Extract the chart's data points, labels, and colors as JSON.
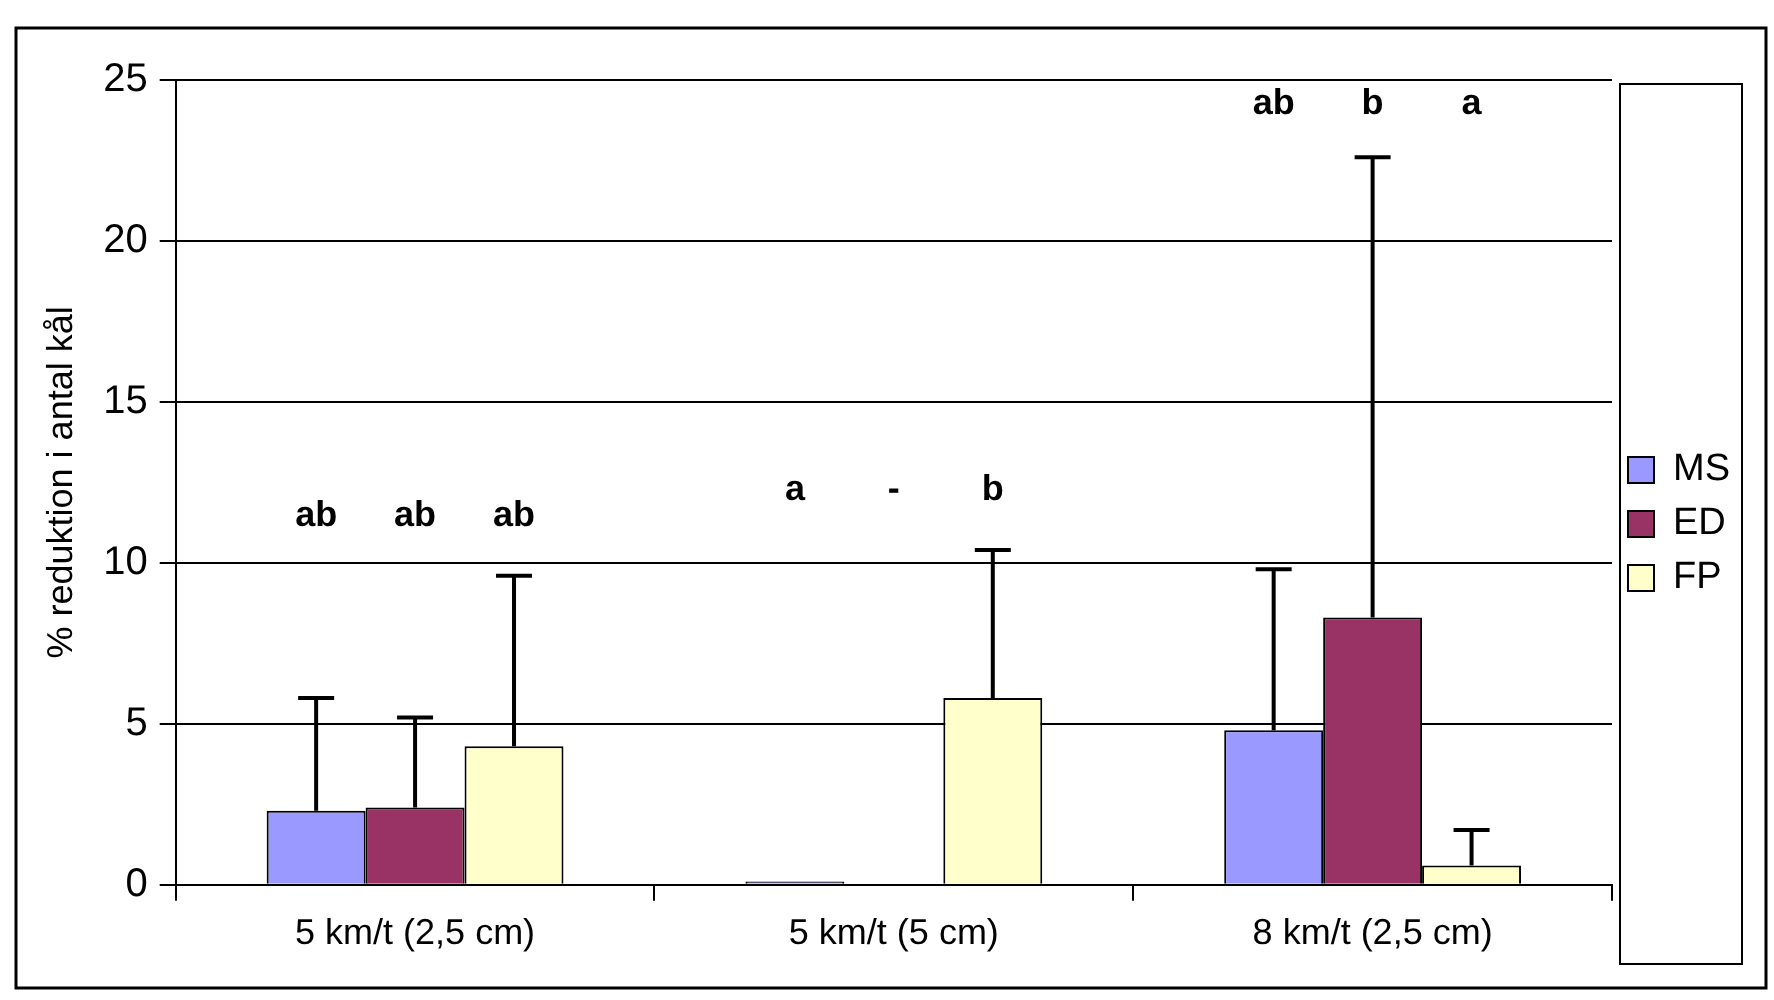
{
  "chart_data": {
    "type": "bar",
    "ylabel": "% reduktion i antal kål",
    "categories": [
      "5 km/t (2,5 cm)",
      "5 km/t (5 cm)",
      "8 km/t (2,5 cm)"
    ],
    "series": [
      {
        "name": "MS",
        "color": "#9999ff",
        "values": [
          2.3,
          0.1,
          4.8
        ],
        "errors": [
          [
            2.3,
            5.8
          ],
          null,
          [
            4.8,
            9.8
          ]
        ]
      },
      {
        "name": "ED",
        "color": "#993366",
        "values": [
          2.4,
          0,
          8.3
        ],
        "errors": [
          [
            2.4,
            5.2
          ],
          null,
          [
            8.3,
            22.6
          ]
        ]
      },
      {
        "name": "FP",
        "color": "#ffffcc",
        "values": [
          4.3,
          5.8,
          0.6
        ],
        "errors": [
          [
            4.3,
            9.6
          ],
          [
            5.8,
            10.4
          ],
          [
            0.6,
            1.7
          ]
        ]
      }
    ],
    "ylim": [
      0,
      25
    ],
    "yticks": [
      0,
      5,
      10,
      15,
      20,
      25
    ],
    "grid": "y",
    "legend": "right",
    "annotations": [
      "ab",
      "ab",
      "ab",
      "a",
      "-",
      "b",
      "ab",
      "b",
      "a"
    ]
  }
}
